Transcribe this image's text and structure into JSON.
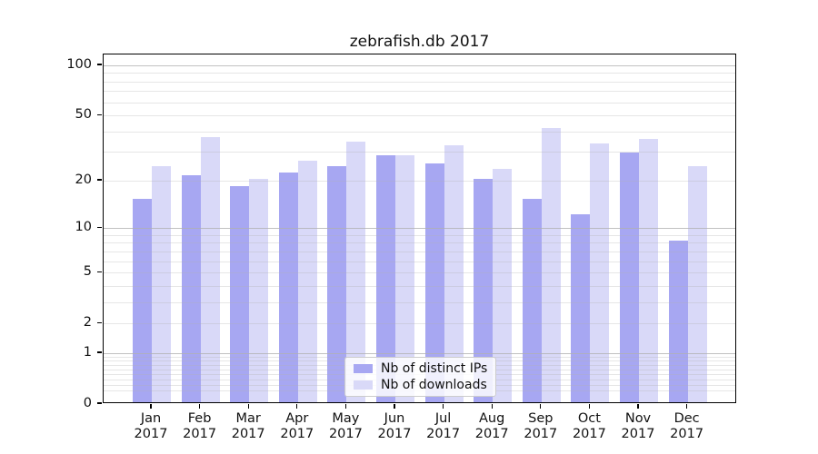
{
  "title": "zebrafish.db 2017",
  "chart_data": {
    "type": "bar",
    "title": "zebrafish.db 2017",
    "categories": [
      "Jan 2017",
      "Feb 2017",
      "Mar 2017",
      "Apr 2017",
      "May 2017",
      "Jun 2017",
      "Jul 2017",
      "Aug 2017",
      "Sep 2017",
      "Oct 2017",
      "Nov 2017",
      "Dec 2017"
    ],
    "month_labels": [
      "Jan",
      "Feb",
      "Mar",
      "Apr",
      "May",
      "Jun",
      "Jul",
      "Aug",
      "Sep",
      "Oct",
      "Nov",
      "Dec"
    ],
    "year_label": "2017",
    "series": [
      {
        "name": "Nb of distinct IPs",
        "color": "#a7a7f2",
        "values": [
          15,
          21,
          18,
          22,
          24,
          28,
          25,
          20,
          15,
          12,
          29,
          8
        ]
      },
      {
        "name": "Nb of downloads",
        "color": "#d9d9f8",
        "values": [
          24,
          36,
          20,
          26,
          34,
          28,
          32,
          23,
          41,
          33,
          35,
          24
        ]
      }
    ],
    "yscale": "log(1+y)",
    "yticks": [
      0,
      1,
      2,
      5,
      10,
      20,
      50,
      100
    ],
    "ylim": [
      0,
      115
    ],
    "grid": {
      "which": "both",
      "major_at": [
        1,
        10,
        100
      ],
      "major_color": "#c4c4c4",
      "minor_color": "#e7e7e7"
    },
    "legend": {
      "position": "lower center",
      "entries": [
        "Nb of distinct IPs",
        "Nb of downloads"
      ]
    },
    "colors": {
      "distinct_ips": "#a7a7f2",
      "downloads": "#d9d9f8",
      "spine": "#000000",
      "background": "#ffffff"
    }
  }
}
